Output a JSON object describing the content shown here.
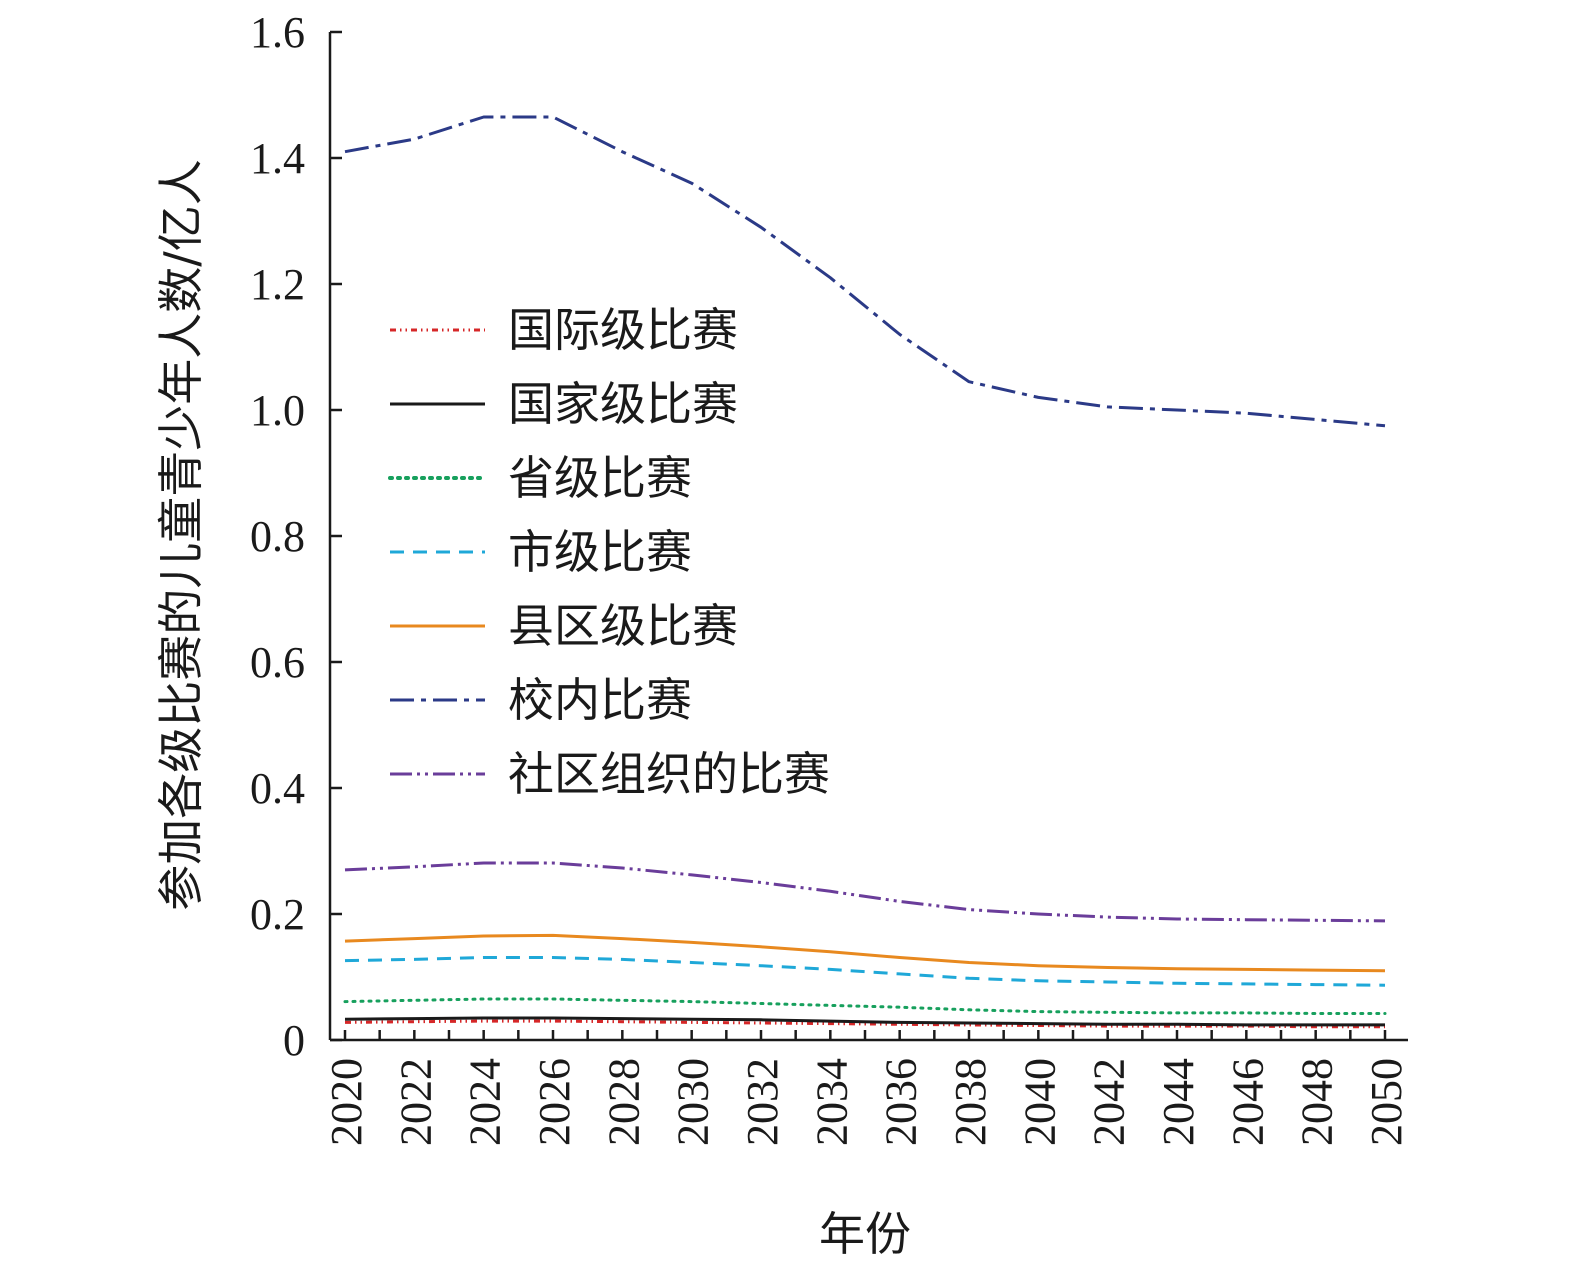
{
  "chart_data": {
    "type": "line",
    "xlabel": "年份",
    "ylabel": "参加各级比赛的儿童青少年人数/亿人",
    "xlim": [
      2020,
      2050
    ],
    "ylim": [
      0,
      1.6
    ],
    "xticks": [
      "2020",
      "2022",
      "2024",
      "2026",
      "2028",
      "2030",
      "2032",
      "2034",
      "2036",
      "2038",
      "2040",
      "2042",
      "2044",
      "2046",
      "2048",
      "2050"
    ],
    "yticks": [
      "0",
      "0.2",
      "0.4",
      "0.6",
      "0.8",
      "1.0",
      "1.2",
      "1.4",
      "1.6"
    ],
    "x": [
      2020,
      2022,
      2024,
      2026,
      2028,
      2030,
      2032,
      2034,
      2036,
      2038,
      2040,
      2042,
      2044,
      2046,
      2048,
      2050
    ],
    "legend_position": "center-left",
    "series": [
      {
        "name": "国际级比赛",
        "color": "#d62728",
        "dash": "6,4,1.5,4,1.5,4",
        "values": [
          0.028,
          0.029,
          0.03,
          0.03,
          0.029,
          0.028,
          0.027,
          0.026,
          0.025,
          0.024,
          0.023,
          0.022,
          0.022,
          0.022,
          0.021,
          0.021
        ]
      },
      {
        "name": "国家级比赛",
        "color": "#1a1a1a",
        "dash": "",
        "values": [
          0.033,
          0.034,
          0.035,
          0.035,
          0.034,
          0.033,
          0.032,
          0.03,
          0.028,
          0.027,
          0.026,
          0.025,
          0.025,
          0.024,
          0.024,
          0.024
        ]
      },
      {
        "name": "省级比赛",
        "color": "#17a05d",
        "dash": "2,6",
        "values": [
          0.061,
          0.063,
          0.065,
          0.065,
          0.063,
          0.061,
          0.058,
          0.055,
          0.052,
          0.048,
          0.045,
          0.044,
          0.043,
          0.043,
          0.042,
          0.042
        ]
      },
      {
        "name": "市级比赛",
        "color": "#1fa8d8",
        "dash": "14,9",
        "values": [
          0.126,
          0.128,
          0.131,
          0.131,
          0.128,
          0.123,
          0.118,
          0.112,
          0.105,
          0.098,
          0.094,
          0.092,
          0.09,
          0.089,
          0.088,
          0.087
        ]
      },
      {
        "name": "县区级比赛",
        "color": "#e8891f",
        "dash": "",
        "values": [
          0.157,
          0.161,
          0.165,
          0.166,
          0.161,
          0.155,
          0.148,
          0.14,
          0.131,
          0.123,
          0.118,
          0.115,
          0.113,
          0.112,
          0.111,
          0.11
        ]
      },
      {
        "name": "校内比赛",
        "color": "#2b3a87",
        "dash": "24,7,5,7",
        "values": [
          1.41,
          1.43,
          1.465,
          1.465,
          1.41,
          1.36,
          1.29,
          1.21,
          1.12,
          1.045,
          1.02,
          1.005,
          1.0,
          0.995,
          0.985,
          0.975
        ]
      },
      {
        "name": "社区组织的比赛",
        "color": "#6a3d9a",
        "dash": "22,5,3,5,3,5",
        "values": [
          0.27,
          0.275,
          0.281,
          0.281,
          0.273,
          0.262,
          0.25,
          0.236,
          0.22,
          0.207,
          0.2,
          0.195,
          0.192,
          0.191,
          0.19,
          0.189
        ]
      }
    ]
  }
}
